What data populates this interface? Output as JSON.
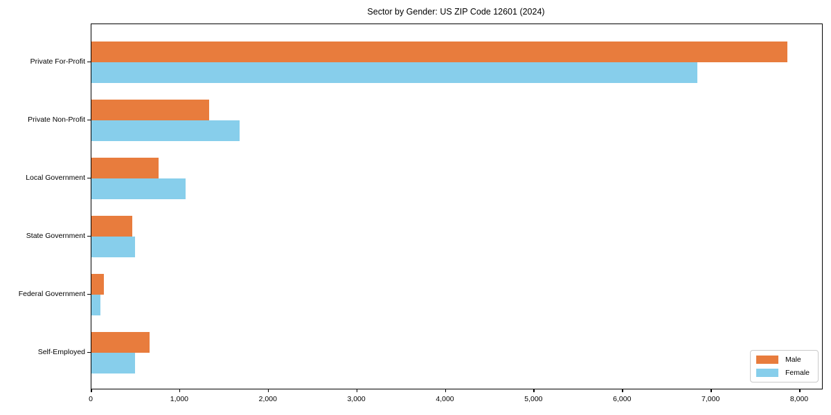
{
  "chart_data": {
    "type": "bar",
    "orientation": "horizontal",
    "title": "Sector by Gender: US ZIP Code 12601 (2024)",
    "categories": [
      "Private For-Profit",
      "Private Non-Profit",
      "Local Government",
      "State Government",
      "Federal Government",
      "Self-Employed"
    ],
    "series": [
      {
        "name": "Male",
        "color": "#e87c3d",
        "values": [
          7860,
          1330,
          760,
          460,
          140,
          660
        ]
      },
      {
        "name": "Female",
        "color": "#87ceeb",
        "values": [
          6840,
          1670,
          1060,
          490,
          100,
          490
        ]
      }
    ],
    "xlabel": "",
    "ylabel": "",
    "xlim": [
      0,
      8250
    ],
    "x_ticks": [
      0,
      1000,
      2000,
      3000,
      4000,
      5000,
      6000,
      7000,
      8000
    ],
    "x_tick_labels": [
      "0",
      "1,000",
      "2,000",
      "3,000",
      "4,000",
      "5,000",
      "6,000",
      "7,000",
      "8,000"
    ],
    "legend_position": "lower right",
    "grid": false,
    "bar_order_in_group": [
      "Male",
      "Female"
    ]
  }
}
